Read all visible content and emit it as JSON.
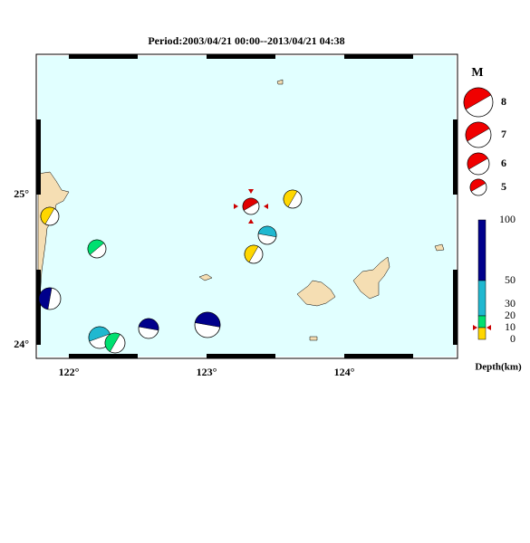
{
  "title": "Period:2003/04/21 00:00--2013/04/21 04:38",
  "map": {
    "lat_labels": [
      "25°",
      "24°"
    ],
    "lon_labels": [
      "122°",
      "123°",
      "124°"
    ]
  },
  "magnitude_legend": {
    "title": "M",
    "labels": [
      "8",
      "7",
      "6",
      "5"
    ]
  },
  "depth_scale": {
    "labels": [
      "100",
      "50",
      "30",
      "20",
      "10",
      "0"
    ],
    "title": "Depth(km)"
  }
}
